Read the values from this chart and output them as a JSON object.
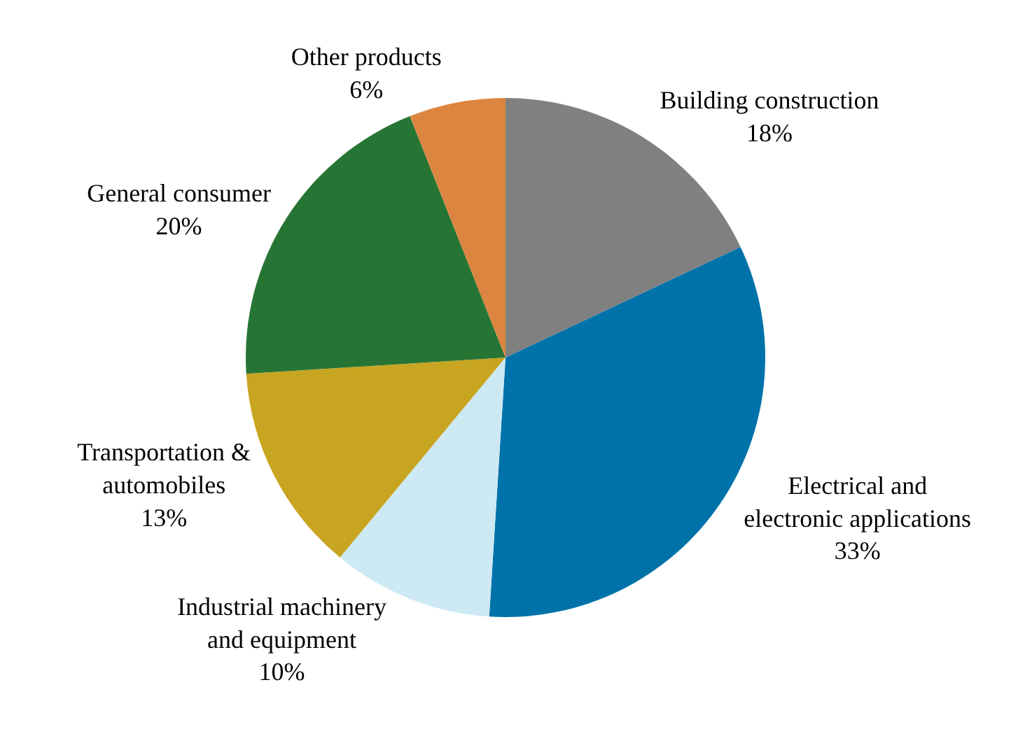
{
  "chart_data": {
    "type": "pie",
    "categories": [
      "Building construction",
      "Electrical and electronic applications",
      "Industrial machinery and equipment",
      "Transportation & automobiles",
      "General consumer",
      "Other products"
    ],
    "values": [
      18,
      33,
      10,
      13,
      20,
      6
    ],
    "value_labels": [
      "18%",
      "33%",
      "10%",
      "13%",
      "20%",
      "6%"
    ],
    "colors": [
      "#808080",
      "#0072aa",
      "#cde9f4",
      "#c8a520",
      "#277534",
      "#dc8540"
    ],
    "legend": false
  }
}
